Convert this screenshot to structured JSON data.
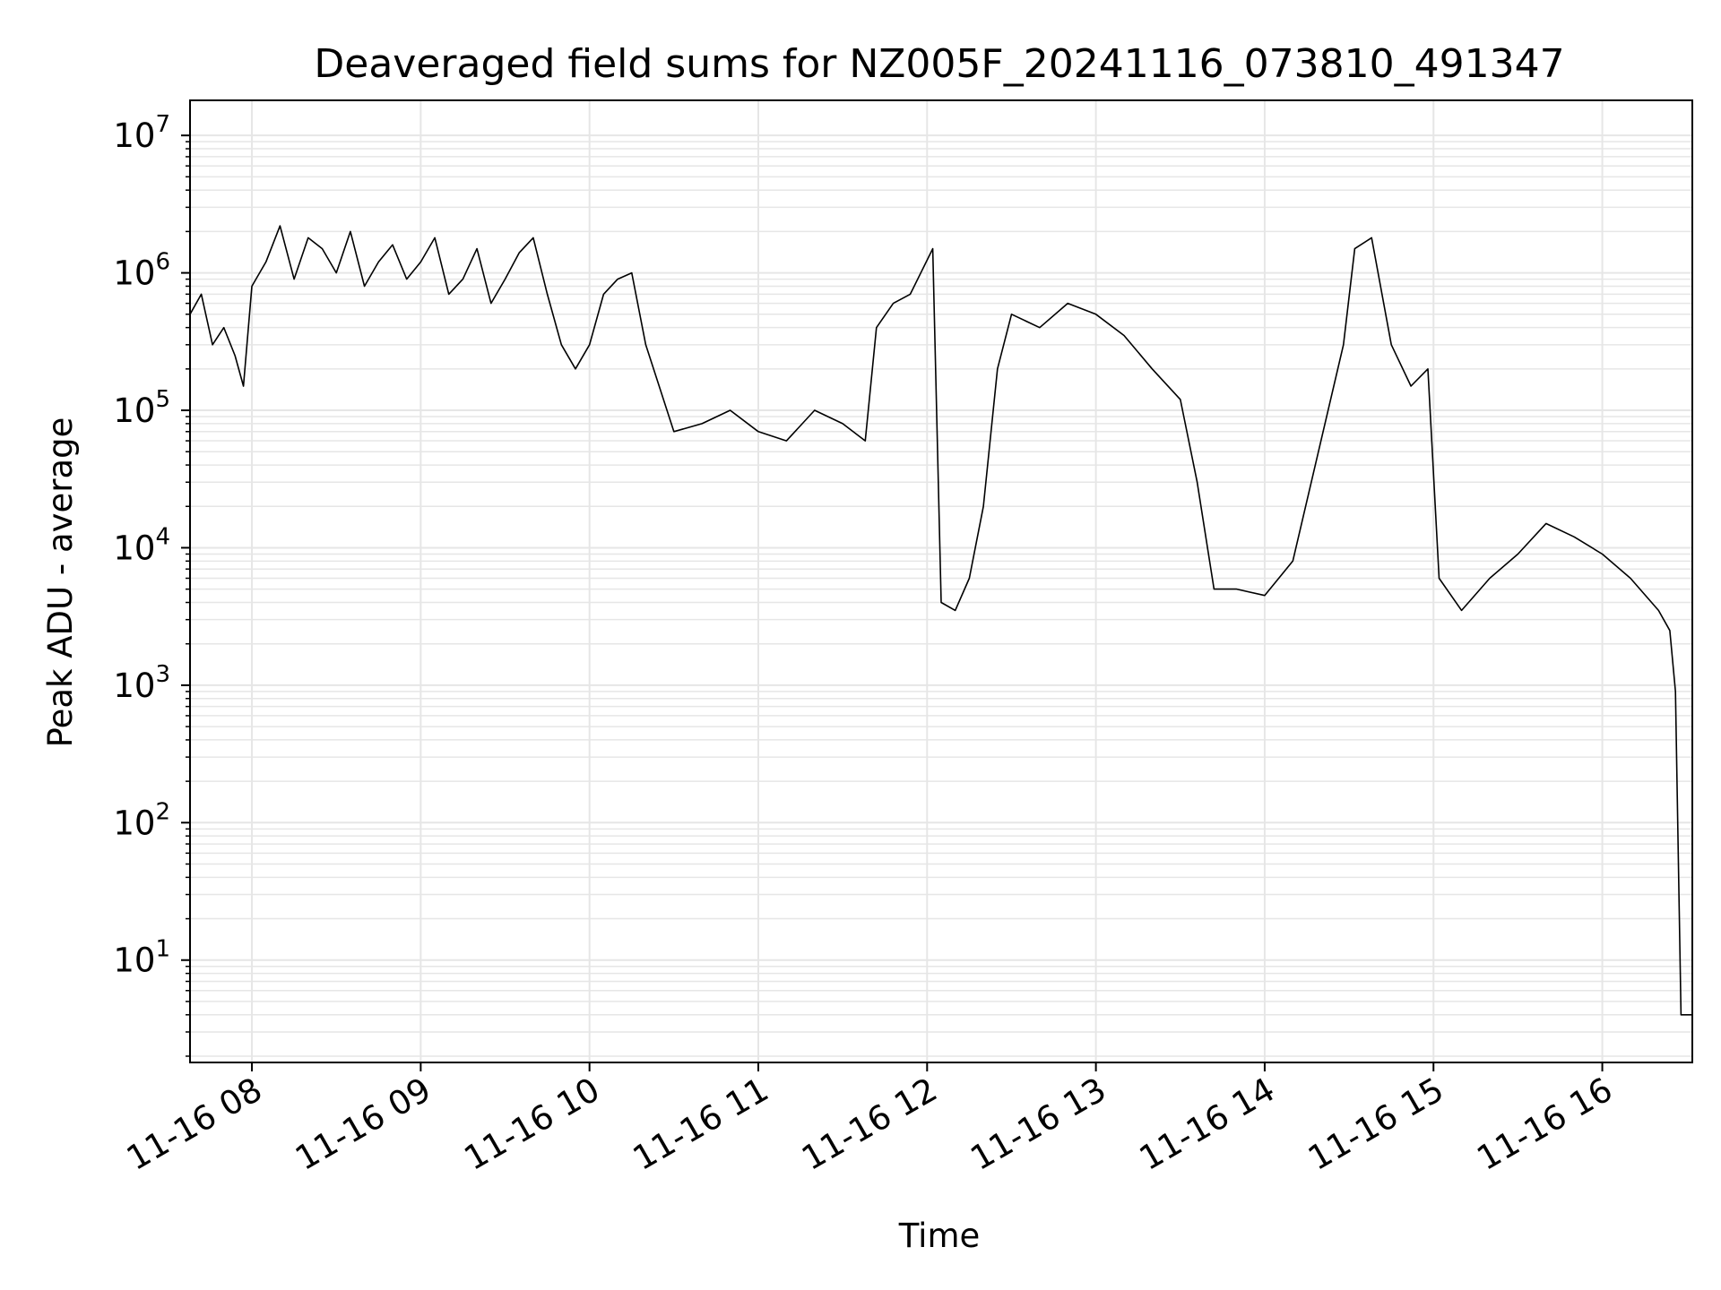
{
  "chart_data": {
    "type": "line",
    "title": "Deaveraged field sums for NZ005F_20241116_073810_491347",
    "xlabel": "Time",
    "ylabel": "Peak ADU - average",
    "y_scale": "log",
    "ylim": [
      1.8,
      18000000
    ],
    "xlim": [
      "2024-11-16 07:38",
      "2024-11-16 16:32"
    ],
    "grid": true,
    "legend": "none",
    "line_color": "#000000",
    "grid_color": "#e6e6e6",
    "x_ticks": [
      {
        "t": "2024-11-16 08:00",
        "label": "11-16 08"
      },
      {
        "t": "2024-11-16 09:00",
        "label": "11-16 09"
      },
      {
        "t": "2024-11-16 10:00",
        "label": "11-16 10"
      },
      {
        "t": "2024-11-16 11:00",
        "label": "11-16 11"
      },
      {
        "t": "2024-11-16 12:00",
        "label": "11-16 12"
      },
      {
        "t": "2024-11-16 13:00",
        "label": "11-16 13"
      },
      {
        "t": "2024-11-16 14:00",
        "label": "11-16 14"
      },
      {
        "t": "2024-11-16 15:00",
        "label": "11-16 15"
      },
      {
        "t": "2024-11-16 16:00",
        "label": "11-16 16"
      }
    ],
    "y_ticks": [
      {
        "value": 10,
        "base": "10",
        "exp": "1"
      },
      {
        "value": 100,
        "base": "10",
        "exp": "2"
      },
      {
        "value": 1000,
        "base": "10",
        "exp": "3"
      },
      {
        "value": 10000,
        "base": "10",
        "exp": "4"
      },
      {
        "value": 100000,
        "base": "10",
        "exp": "5"
      },
      {
        "value": 1000000,
        "base": "10",
        "exp": "6"
      },
      {
        "value": 10000000,
        "base": "10",
        "exp": "7"
      }
    ],
    "series": [
      {
        "x": [
          "2024-11-16 07:38",
          "2024-11-16 07:42",
          "2024-11-16 07:46",
          "2024-11-16 07:50",
          "2024-11-16 07:54",
          "2024-11-16 07:57",
          "2024-11-16 08:00",
          "2024-11-16 08:05",
          "2024-11-16 08:10",
          "2024-11-16 08:15",
          "2024-11-16 08:20",
          "2024-11-16 08:25",
          "2024-11-16 08:30",
          "2024-11-16 08:35",
          "2024-11-16 08:40",
          "2024-11-16 08:45",
          "2024-11-16 08:50",
          "2024-11-16 08:55",
          "2024-11-16 09:00",
          "2024-11-16 09:05",
          "2024-11-16 09:10",
          "2024-11-16 09:15",
          "2024-11-16 09:20",
          "2024-11-16 09:25",
          "2024-11-16 09:30",
          "2024-11-16 09:35",
          "2024-11-16 09:40",
          "2024-11-16 09:45",
          "2024-11-16 09:50",
          "2024-11-16 09:55",
          "2024-11-16 10:00",
          "2024-11-16 10:05",
          "2024-11-16 10:10",
          "2024-11-16 10:15",
          "2024-11-16 10:20",
          "2024-11-16 10:30",
          "2024-11-16 10:40",
          "2024-11-16 10:50",
          "2024-11-16 11:00",
          "2024-11-16 11:10",
          "2024-11-16 11:20",
          "2024-11-16 11:30",
          "2024-11-16 11:38",
          "2024-11-16 11:42",
          "2024-11-16 11:48",
          "2024-11-16 11:54",
          "2024-11-16 12:02",
          "2024-11-16 12:05",
          "2024-11-16 12:10",
          "2024-11-16 12:15",
          "2024-11-16 12:20",
          "2024-11-16 12:25",
          "2024-11-16 12:30",
          "2024-11-16 12:40",
          "2024-11-16 12:50",
          "2024-11-16 13:00",
          "2024-11-16 13:10",
          "2024-11-16 13:20",
          "2024-11-16 13:30",
          "2024-11-16 13:36",
          "2024-11-16 13:42",
          "2024-11-16 13:50",
          "2024-11-16 14:00",
          "2024-11-16 14:10",
          "2024-11-16 14:20",
          "2024-11-16 14:28",
          "2024-11-16 14:32",
          "2024-11-16 14:38",
          "2024-11-16 14:45",
          "2024-11-16 14:52",
          "2024-11-16 14:58",
          "2024-11-16 15:02",
          "2024-11-16 15:10",
          "2024-11-16 15:20",
          "2024-11-16 15:30",
          "2024-11-16 15:40",
          "2024-11-16 15:50",
          "2024-11-16 16:00",
          "2024-11-16 16:10",
          "2024-11-16 16:20",
          "2024-11-16 16:24",
          "2024-11-16 16:26",
          "2024-11-16 16:28",
          "2024-11-16 16:30",
          "2024-11-16 16:32"
        ],
        "y": [
          500000,
          700000,
          300000,
          400000,
          250000,
          150000,
          800000,
          1200000,
          2200000,
          900000,
          1800000,
          1500000,
          1000000,
          2000000,
          800000,
          1200000,
          1600000,
          900000,
          1200000,
          1800000,
          700000,
          900000,
          1500000,
          600000,
          900000,
          1400000,
          1800000,
          700000,
          300000,
          200000,
          300000,
          700000,
          900000,
          1000000,
          300000,
          70000,
          80000,
          100000,
          70000,
          60000,
          100000,
          80000,
          60000,
          400000,
          600000,
          700000,
          1500000,
          4000,
          3500,
          6000,
          20000,
          200000,
          500000,
          400000,
          600000,
          500000,
          350000,
          200000,
          120000,
          30000,
          5000,
          5000,
          4500,
          8000,
          60000,
          300000,
          1500000,
          1800000,
          300000,
          150000,
          200000,
          6000,
          3500,
          6000,
          9000,
          15000,
          12000,
          9000,
          6000,
          3500,
          2500,
          900,
          4,
          4,
          4
        ]
      }
    ]
  }
}
